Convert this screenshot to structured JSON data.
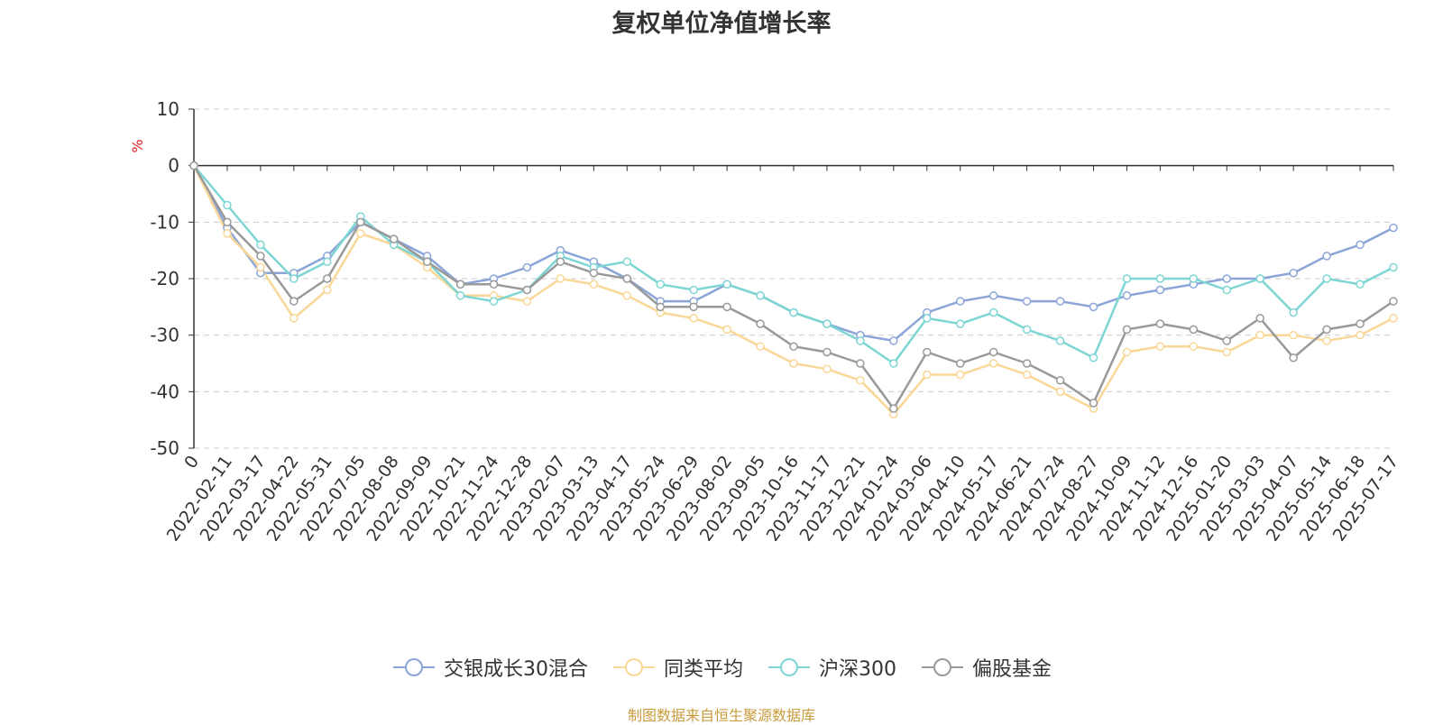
{
  "title": "复权单位净值增长率",
  "source_note": "制图数据来自恒生聚源数据库",
  "chart_data": {
    "type": "line",
    "title": "复权单位净值增长率",
    "ylabel": "%",
    "xlabel": "",
    "ylim": [
      -50,
      10
    ],
    "yticks": [
      10,
      0,
      -10,
      -20,
      -30,
      -40,
      -50
    ],
    "grid": true,
    "legend_position": "bottom",
    "x": [
      "0",
      "2022-02-11",
      "2022-03-17",
      "2022-04-22",
      "2022-05-31",
      "2022-07-05",
      "2022-08-08",
      "2022-09-09",
      "2022-10-21",
      "2022-11-24",
      "2022-12-28",
      "2023-02-07",
      "2023-03-13",
      "2023-04-17",
      "2023-05-24",
      "2023-06-29",
      "2023-08-02",
      "2023-09-05",
      "2023-10-16",
      "2023-11-17",
      "2023-12-21",
      "2024-01-24",
      "2024-03-06",
      "2024-04-10",
      "2024-05-17",
      "2024-06-21",
      "2024-07-24",
      "2024-08-27",
      "2024-10-09",
      "2024-11-12",
      "2024-12-16",
      "2025-01-20",
      "2025-03-03",
      "2025-04-07",
      "2025-05-14",
      "2025-06-18",
      "2025-07-17"
    ],
    "series": [
      {
        "name": "交银成长30混合",
        "color": "#8ba5d8",
        "values": [
          0,
          -11,
          -19,
          -19,
          -16,
          -10,
          -13,
          -16,
          -21,
          -20,
          -18,
          -15,
          -17,
          -20,
          -24,
          -24,
          -21,
          -23,
          -26,
          -28,
          -30,
          -31,
          -26,
          -24,
          -23,
          -24,
          -24,
          -25,
          -23,
          -22,
          -21,
          -20,
          -20,
          -19,
          -16,
          -14,
          -11
        ]
      },
      {
        "name": "同类平均",
        "color": "#fad797",
        "values": [
          0,
          -12,
          -18,
          -27,
          -22,
          -12,
          -14,
          -18,
          -23,
          -23,
          -24,
          -20,
          -21,
          -23,
          -26,
          -27,
          -29,
          -32,
          -35,
          -36,
          -38,
          -44,
          -37,
          -37,
          -35,
          -37,
          -40,
          -43,
          -33,
          -32,
          -32,
          -33,
          -30,
          -30,
          -31,
          -30,
          -27
        ]
      },
      {
        "name": "沪深300",
        "color": "#7dd6d3",
        "values": [
          0,
          -7,
          -14,
          -20,
          -17,
          -9,
          -14,
          -17,
          -23,
          -24,
          -22,
          -16,
          -18,
          -17,
          -21,
          -22,
          -21,
          -23,
          -26,
          -28,
          -31,
          -35,
          -27,
          -28,
          -26,
          -29,
          -31,
          -34,
          -20,
          -20,
          -20,
          -22,
          -20,
          -26,
          -20,
          -21,
          -18
        ]
      },
      {
        "name": "偏股基金",
        "color": "#999999",
        "values": [
          0,
          -10,
          -16,
          -24,
          -20,
          -10,
          -13,
          -17,
          -21,
          -21,
          -22,
          -17,
          -19,
          -20,
          -25,
          -25,
          -25,
          -28,
          -32,
          -33,
          -35,
          -43,
          -33,
          -35,
          -33,
          -35,
          -38,
          -42,
          -29,
          -28,
          -29,
          -31,
          -27,
          -34,
          -29,
          -28,
          -24
        ]
      }
    ]
  }
}
